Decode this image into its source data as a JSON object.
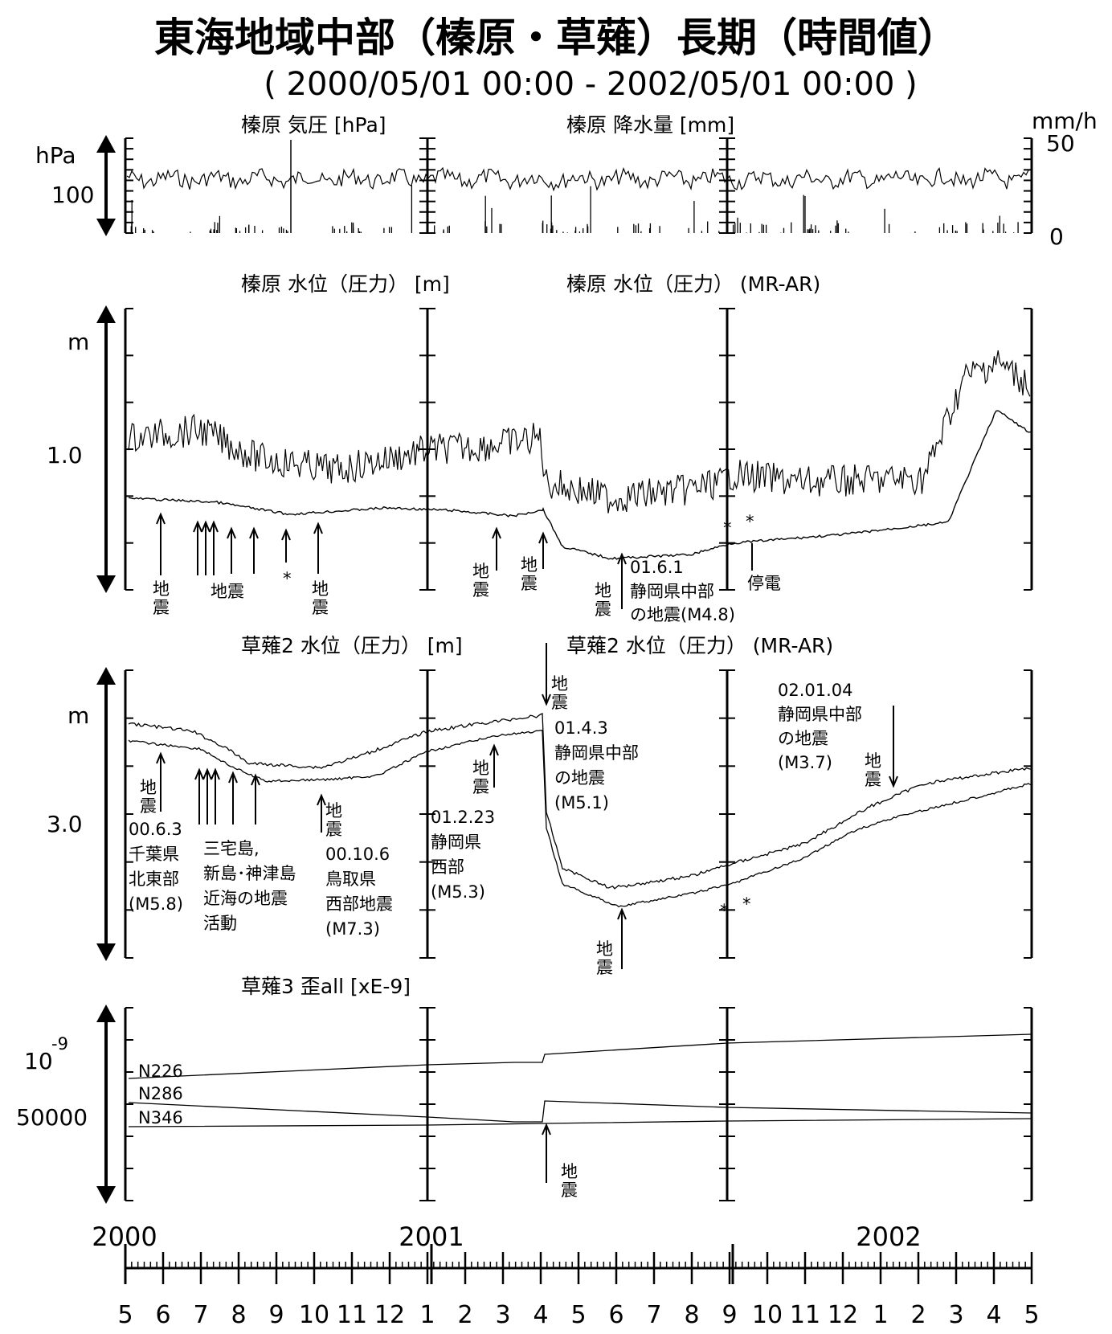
{
  "header": {
    "title": "東海地域中部（榛原・草薙）長期（時間値）",
    "period": "( 2000/05/01 00:00 - 2002/05/01 00:00 )"
  },
  "panels": [
    {
      "titles": [
        "榛原 気圧 [hPa]",
        "榛原 降水量 [mm]"
      ],
      "left_unit": "hPa",
      "left_tick": "100",
      "right_unit": "mm/h",
      "right_ticks": [
        "50",
        "0"
      ]
    },
    {
      "titles": [
        "榛原 水位（圧力） [m]",
        "榛原 水位（圧力） (MR-AR)"
      ],
      "left_unit": "m",
      "left_tick": "1.0"
    },
    {
      "titles": [
        "草薙2 水位（圧力） [m]",
        "草薙2 水位（圧力） (MR-AR)"
      ],
      "left_unit": "m",
      "left_tick": "3.0"
    },
    {
      "titles": [
        "草薙3 歪all [xE-9]"
      ],
      "left_unit_base": "10",
      "left_unit_exp": "-9",
      "left_tick": "50000",
      "series_labels": [
        "N226",
        "N286",
        "N346"
      ]
    }
  ],
  "annotations": {
    "p2": {
      "a1": [
        "地",
        "震"
      ],
      "a2": "地震",
      "star": "*",
      "a3": [
        "地",
        "震"
      ],
      "a4": [
        "地",
        "震"
      ],
      "a5": [
        "地",
        "震"
      ],
      "a6": [
        "地",
        "震"
      ],
      "eq0601": [
        "01.6.1",
        "静岡県中部",
        "の地震(M4.8)"
      ],
      "blackout": "停電",
      "stars": [
        "*",
        "*"
      ]
    },
    "p3": {
      "eqtop": [
        "地",
        "震"
      ],
      "eq0403": [
        "01.4.3",
        "静岡県中部",
        "の地震",
        "(M5.1)"
      ],
      "eq0201": [
        "02.01.04",
        "静岡県中部",
        "の地震",
        "(M3.7)"
      ],
      "eqjan": [
        "地",
        "震"
      ],
      "eq0603": [
        "地",
        "震",
        "00.6.3",
        "千葉県",
        "北東部",
        "(M5.8)"
      ],
      "miyake": [
        "三宅島,",
        "新島･神津島",
        "近海の地震",
        "活動"
      ],
      "tottori": [
        "地",
        "震",
        "00.10.6",
        "鳥取県",
        "西部地震",
        "(M7.3)"
      ],
      "feb": [
        "地",
        "震"
      ],
      "eq0223": [
        "01.2.23",
        "静岡県",
        "西部",
        "(M5.3)"
      ],
      "june": [
        "地",
        "震"
      ],
      "stars": [
        "*",
        "*"
      ]
    },
    "p4": {
      "eq": [
        "地",
        "震"
      ]
    }
  },
  "axis": {
    "years": [
      "2000",
      "2001",
      "2002"
    ],
    "months": [
      "5",
      "6",
      "7",
      "8",
      "9",
      "10",
      "11",
      "12",
      "1",
      "2",
      "3",
      "4",
      "5",
      "6",
      "7",
      "8",
      "9",
      "10",
      "11",
      "12",
      "1",
      "2",
      "3",
      "4",
      "5"
    ]
  },
  "chart_data": [
    {
      "type": "line",
      "title": "榛原 気圧 [hPa] / 榛原 降水量 [mm]",
      "x_range": [
        "2000/05/01 00:00",
        "2002/05/01 00:00"
      ],
      "series": [
        {
          "name": "榛原 気圧",
          "unit": "hPa",
          "note": "hourly pressure fluctuating around a constant level",
          "values": []
        },
        {
          "name": "榛原 降水量",
          "unit": "mm/h",
          "y_range": [
            0,
            50
          ],
          "note": "hourly precipitation bars, mostly below 30 mm/h with one spike near 50 mm/h in Sep 2000",
          "values": []
        }
      ]
    },
    {
      "type": "line",
      "title": "榛原 水位（圧力） [m] / 榛原 水位（圧力） (MR-AR)",
      "x": [
        "2000-05",
        "2000-09",
        "2001-01",
        "2001-04",
        "2001-06",
        "2001-09",
        "2002-01",
        "2002-03",
        "2002-04",
        "2002-05"
      ],
      "series": [
        {
          "name": "榛原 水位（圧力） [m]",
          "values": [
            1.1,
            1.0,
            1.1,
            1.1,
            0.9,
            0.9,
            0.95,
            1.3,
            1.55,
            1.4
          ]
        },
        {
          "name": "榛原 水位（圧力） (MR-AR)",
          "values": [
            0.8,
            0.74,
            0.78,
            0.75,
            0.5,
            0.55,
            0.64,
            0.67,
            1.2,
            1.1
          ]
        }
      ]
    },
    {
      "type": "line",
      "title": "草薙2 水位（圧力） [m] / 草薙2 水位（圧力） (MR-AR)",
      "x": [
        "2000-05",
        "2000-07",
        "2000-09",
        "2000-11",
        "2001-01",
        "2001-04",
        "2001-05",
        "2001-06",
        "2001-09",
        "2002-01",
        "2002-05"
      ],
      "series": [
        {
          "name": "草薙2 水位（圧力） [m]",
          "values": [
            3.48,
            3.42,
            3.28,
            3.33,
            3.43,
            3.48,
            2.78,
            2.7,
            2.78,
            3.05,
            3.22
          ]
        },
        {
          "name": "草薙2 水位（圧力） (MR-AR)",
          "values": [
            3.38,
            3.32,
            3.2,
            3.25,
            3.35,
            3.37,
            2.72,
            2.6,
            2.7,
            2.98,
            3.17
          ]
        }
      ]
    },
    {
      "type": "line",
      "title": "草薙3 歪all [xE-9]",
      "x": [
        "2000-05",
        "2001-01",
        "2001-04",
        "2001-04b",
        "2002-05"
      ],
      "series": [
        {
          "name": "N226",
          "values": [
            50180,
            50210,
            50225,
            50245,
            50295
          ]
        },
        {
          "name": "N286",
          "values": [
            50085,
            50050,
            50035,
            50080,
            50055
          ]
        },
        {
          "name": "N346",
          "values": [
            50000,
            50010,
            50015,
            50020,
            50025
          ]
        }
      ]
    }
  ]
}
